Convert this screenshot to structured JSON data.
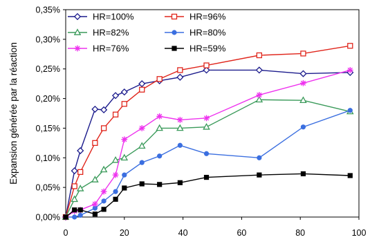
{
  "chart_data": {
    "type": "line",
    "title": "",
    "xlabel": "",
    "ylabel": "Expansion générée par la réaction",
    "xlim": [
      0,
      100
    ],
    "ylim": [
      0,
      0.35
    ],
    "x_ticks": [
      "0",
      "20",
      "40",
      "60",
      "80",
      "100"
    ],
    "y_ticks": [
      "0,00%",
      "0,05%",
      "0,10%",
      "0,15%",
      "0,20%",
      "0,25%",
      "0,30%",
      "0,35%"
    ],
    "grid": false,
    "legend_position": "top-left",
    "series": [
      {
        "name": "HR=100%",
        "color": "#1b1b8c",
        "marker": "diamond-open",
        "x": [
          0,
          3,
          5,
          10,
          13,
          17,
          20,
          26,
          32,
          39,
          48,
          66,
          81,
          97
        ],
        "y": [
          0.0,
          0.078,
          0.112,
          0.182,
          0.181,
          0.205,
          0.211,
          0.225,
          0.23,
          0.236,
          0.248,
          0.248,
          0.242,
          0.244
        ]
      },
      {
        "name": "HR=96%",
        "color": "#e0251b",
        "marker": "square-open",
        "x": [
          0,
          3,
          5,
          10,
          13,
          17,
          20,
          26,
          32,
          39,
          48,
          66,
          81,
          97
        ],
        "y": [
          0.0,
          0.052,
          0.076,
          0.125,
          0.15,
          0.173,
          0.191,
          0.215,
          0.233,
          0.248,
          0.256,
          0.273,
          0.276,
          0.289
        ]
      },
      {
        "name": "HR=82%",
        "color": "#3a9a5a",
        "marker": "triangle-open",
        "x": [
          0,
          3,
          5,
          10,
          13,
          17,
          20,
          26,
          32,
          39,
          48,
          66,
          81,
          97
        ],
        "y": [
          0.0,
          0.03,
          0.048,
          0.063,
          0.08,
          0.096,
          0.1,
          0.12,
          0.15,
          0.15,
          0.152,
          0.198,
          0.197,
          0.178
        ]
      },
      {
        "name": "HR=80%",
        "color": "#3b6fe0",
        "marker": "circle-filled",
        "x": [
          0,
          3,
          5,
          10,
          13,
          17,
          20,
          26,
          32,
          39,
          48,
          66,
          81,
          97
        ],
        "y": [
          0.0,
          0.0,
          0.003,
          0.015,
          0.027,
          0.043,
          0.071,
          0.092,
          0.103,
          0.121,
          0.107,
          0.1,
          0.152,
          0.18
        ]
      },
      {
        "name": "HR=76%",
        "color": "#ee33ee",
        "marker": "star",
        "x": [
          0,
          3,
          5,
          10,
          13,
          17,
          20,
          26,
          32,
          39,
          48,
          66,
          81,
          97
        ],
        "y": [
          0.0,
          0.01,
          0.012,
          0.022,
          0.043,
          0.071,
          0.131,
          0.15,
          0.17,
          0.164,
          0.167,
          0.206,
          0.226,
          0.248
        ]
      },
      {
        "name": "HR=59%",
        "color": "#000000",
        "marker": "square-filled",
        "x": [
          0,
          3,
          5,
          10,
          13,
          17,
          20,
          26,
          32,
          39,
          48,
          66,
          81,
          97
        ],
        "y": [
          0.0,
          0.012,
          0.012,
          0.005,
          0.013,
          0.03,
          0.049,
          0.056,
          0.055,
          0.058,
          0.067,
          0.071,
          0.073,
          0.07
        ]
      }
    ]
  }
}
